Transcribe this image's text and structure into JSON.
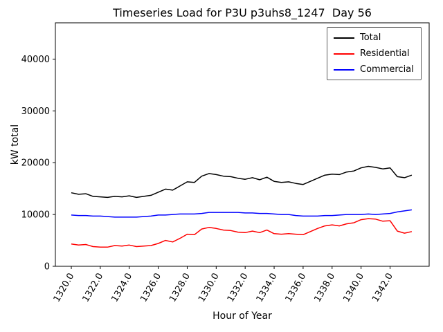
{
  "chart_data": {
    "type": "line",
    "title": "Timeseries Load for P3U p3uhs8_1247  Day 56",
    "xlabel": "Hour of Year",
    "ylabel": "kW total",
    "xlim": [
      1318.9,
      1344.7
    ],
    "ylim": [
      0,
      47000
    ],
    "grid": false,
    "legend_position": "upper right",
    "xticks": {
      "values": [
        1320,
        1322,
        1324,
        1326,
        1328,
        1330,
        1332,
        1334,
        1336,
        1338,
        1340,
        1342
      ],
      "labels": [
        "1320.0",
        "1322.0",
        "1324.0",
        "1326.0",
        "1328.0",
        "1330.0",
        "1332.0",
        "1334.0",
        "1336.0",
        "1338.0",
        "1340.0",
        "1342.0"
      ]
    },
    "yticks": {
      "values": [
        0,
        10000,
        20000,
        30000,
        40000
      ],
      "labels": [
        "0",
        "10000",
        "20000",
        "30000",
        "40000"
      ]
    },
    "x": [
      1320.0,
      1320.5,
      1321.0,
      1321.5,
      1322.0,
      1322.5,
      1323.0,
      1323.5,
      1324.0,
      1324.5,
      1325.0,
      1325.5,
      1326.0,
      1326.5,
      1327.0,
      1327.5,
      1328.0,
      1328.5,
      1329.0,
      1329.5,
      1330.0,
      1330.5,
      1331.0,
      1331.5,
      1332.0,
      1332.5,
      1333.0,
      1333.5,
      1334.0,
      1334.5,
      1335.0,
      1335.5,
      1336.0,
      1336.5,
      1337.0,
      1337.5,
      1338.0,
      1338.5,
      1339.0,
      1339.5,
      1340.0,
      1340.5,
      1341.0,
      1341.5,
      1342.0,
      1342.5,
      1343.0,
      1343.5
    ],
    "series": [
      {
        "name": "Total",
        "color": "#000000",
        "values": [
          14200,
          13900,
          14000,
          13500,
          13400,
          13300,
          13500,
          13400,
          13600,
          13300,
          13500,
          13700,
          14300,
          14900,
          14700,
          15500,
          16300,
          16200,
          17400,
          17900,
          17700,
          17400,
          17300,
          17000,
          16800,
          17100,
          16700,
          17200,
          16400,
          16200,
          16300,
          16000,
          15800,
          16400,
          17000,
          17600,
          17800,
          17700,
          18200,
          18400,
          19000,
          19300,
          19100,
          18800,
          19000,
          17300,
          17100,
          17600
        ]
      },
      {
        "name": "Residential",
        "color": "#ff0000",
        "values": [
          4300,
          4100,
          4200,
          3800,
          3700,
          3700,
          4000,
          3900,
          4100,
          3800,
          3900,
          4000,
          4400,
          5000,
          4700,
          5400,
          6200,
          6100,
          7200,
          7500,
          7300,
          7000,
          6900,
          6600,
          6500,
          6800,
          6500,
          7000,
          6300,
          6200,
          6300,
          6200,
          6100,
          6700,
          7300,
          7800,
          8000,
          7800,
          8200,
          8400,
          9000,
          9200,
          9100,
          8700,
          8800,
          6800,
          6400,
          6700
        ]
      },
      {
        "name": "Commercial",
        "color": "#0000ff",
        "values": [
          9900,
          9800,
          9800,
          9700,
          9700,
          9600,
          9500,
          9500,
          9500,
          9500,
          9600,
          9700,
          9900,
          9900,
          10000,
          10100,
          10100,
          10100,
          10200,
          10400,
          10400,
          10400,
          10400,
          10400,
          10300,
          10300,
          10200,
          10200,
          10100,
          10000,
          10000,
          9800,
          9700,
          9700,
          9700,
          9800,
          9800,
          9900,
          10000,
          10000,
          10000,
          10100,
          10000,
          10100,
          10200,
          10500,
          10700,
          10900
        ]
      }
    ]
  }
}
